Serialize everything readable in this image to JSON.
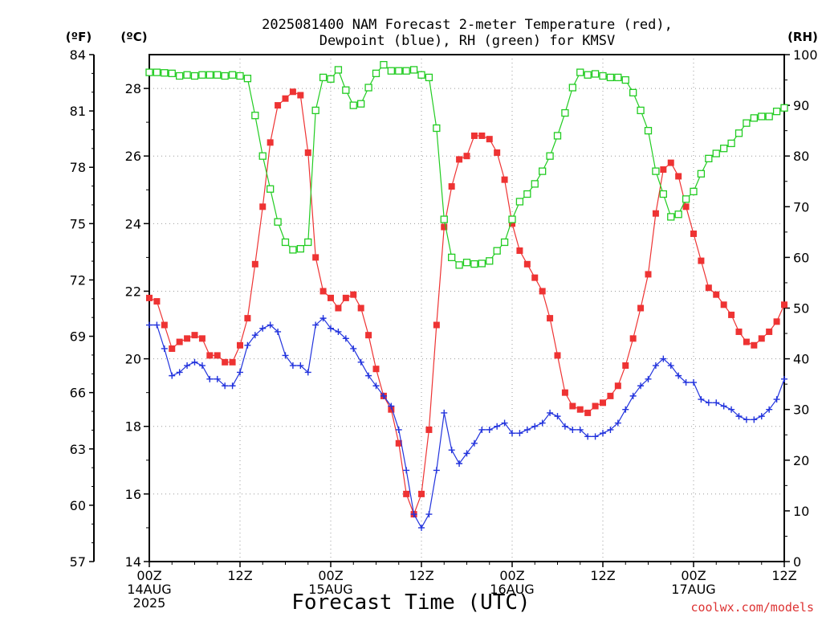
{
  "title_lines": [
    "2025081400 NAM Forecast 2-meter Temperature (red),",
    "Dewpoint (blue), RH (green) for KMSV"
  ],
  "units": {
    "left_f": "(ºF)",
    "left_c": "(ºC)",
    "right": "(RH)"
  },
  "xlabel": "Forecast Time (UTC)",
  "credit": "coolwx.com/models",
  "colors": {
    "temperature": "#ee3333",
    "dewpoint": "#2233dd",
    "rh": "#22cc22",
    "grid": "#999999",
    "credit": "#dd3333"
  },
  "chart_data": {
    "type": "line",
    "title": "2025081400 NAM Forecast 2-meter Temperature (red), Dewpoint (blue), RH (green) for KMSV",
    "xlabel": "Forecast Time (UTC)",
    "x_unit": "forecast hour from 2025-08-14 00Z",
    "xlim": [
      0,
      84
    ],
    "x_ticks": [
      {
        "x": 0,
        "lines": [
          "00Z",
          "14AUG",
          "2025"
        ]
      },
      {
        "x": 12,
        "lines": [
          "12Z"
        ]
      },
      {
        "x": 24,
        "lines": [
          "00Z",
          "15AUG"
        ]
      },
      {
        "x": 36,
        "lines": [
          "12Z"
        ]
      },
      {
        "x": 48,
        "lines": [
          "00Z",
          "16AUG"
        ]
      },
      {
        "x": 60,
        "lines": [
          "12Z"
        ]
      },
      {
        "x": 72,
        "lines": [
          "00Z",
          "17AUG"
        ]
      },
      {
        "x": 84,
        "lines": [
          "12Z"
        ]
      }
    ],
    "y_left_c": {
      "label": "(ºC)",
      "ylim": [
        14,
        29
      ],
      "ticks": [
        14,
        16,
        18,
        20,
        22,
        24,
        26,
        28
      ]
    },
    "y_left_f": {
      "label": "(ºF)",
      "ylim": [
        57,
        84
      ],
      "ticks": [
        57,
        60,
        63,
        66,
        69,
        72,
        75,
        78,
        81,
        84
      ]
    },
    "y_right": {
      "label": "(RH)",
      "ylim": [
        0,
        100
      ],
      "ticks": [
        0,
        10,
        20,
        30,
        40,
        50,
        60,
        70,
        80,
        90,
        100
      ]
    },
    "grid": true,
    "series": [
      {
        "id": "temperature",
        "axis": "c",
        "marker": "filled-square",
        "color": "#ee3333",
        "x": [
          0,
          1,
          2,
          3,
          4,
          5,
          6,
          7,
          8,
          9,
          10,
          11,
          12,
          13,
          14,
          15,
          16,
          17,
          18,
          19,
          20,
          21,
          22,
          23,
          24,
          25,
          26,
          27,
          28,
          29,
          30,
          31,
          32,
          33,
          34,
          35,
          36,
          37,
          38,
          39,
          40,
          41,
          42,
          43,
          44,
          45,
          46,
          47,
          48,
          49,
          50,
          51,
          52,
          53,
          54,
          55,
          56,
          57,
          58,
          59,
          60,
          61,
          62,
          63,
          64,
          65,
          66,
          67,
          68,
          69,
          70,
          71,
          72,
          73,
          74,
          75,
          76,
          77,
          78,
          79,
          80,
          81,
          82,
          83,
          84
        ],
        "values": [
          21.8,
          21.7,
          21.0,
          20.3,
          20.5,
          20.6,
          20.7,
          20.6,
          20.1,
          20.1,
          19.9,
          19.9,
          20.4,
          21.2,
          22.8,
          24.5,
          26.4,
          27.5,
          27.7,
          27.9,
          27.8,
          26.1,
          23.0,
          22.0,
          21.8,
          21.5,
          21.8,
          21.9,
          21.5,
          20.7,
          19.7,
          18.9,
          18.5,
          17.5,
          16.0,
          15.4,
          16.0,
          17.9,
          21.0,
          23.9,
          25.1,
          25.9,
          26.0,
          26.6,
          26.6,
          26.5,
          26.1,
          25.3,
          24.0,
          23.2,
          22.8,
          22.4,
          22.0,
          21.2,
          20.1,
          19.0,
          18.6,
          18.5,
          18.4,
          18.6,
          18.7,
          18.9,
          19.2,
          19.8,
          20.6,
          21.5,
          22.5,
          24.3,
          25.6,
          25.8,
          25.4,
          24.5,
          23.7,
          22.9,
          22.1,
          21.9,
          21.6,
          21.3,
          20.8,
          20.5,
          20.4,
          20.6,
          20.8,
          21.1,
          21.6
        ]
      },
      {
        "id": "dewpoint",
        "axis": "c",
        "marker": "plus",
        "color": "#2233dd",
        "x": [
          0,
          1,
          2,
          3,
          4,
          5,
          6,
          7,
          8,
          9,
          10,
          11,
          12,
          13,
          14,
          15,
          16,
          17,
          18,
          19,
          20,
          21,
          22,
          23,
          24,
          25,
          26,
          27,
          28,
          29,
          30,
          31,
          32,
          33,
          34,
          35,
          36,
          37,
          38,
          39,
          40,
          41,
          42,
          43,
          44,
          45,
          46,
          47,
          48,
          49,
          50,
          51,
          52,
          53,
          54,
          55,
          56,
          57,
          58,
          59,
          60,
          61,
          62,
          63,
          64,
          65,
          66,
          67,
          68,
          69,
          70,
          71,
          72,
          73,
          74,
          75,
          76,
          77,
          78,
          79,
          80,
          81,
          82,
          83,
          84
        ],
        "values": [
          21.0,
          21.0,
          20.3,
          19.5,
          19.6,
          19.8,
          19.9,
          19.8,
          19.4,
          19.4,
          19.2,
          19.2,
          19.6,
          20.4,
          20.7,
          20.9,
          21.0,
          20.8,
          20.1,
          19.8,
          19.8,
          19.6,
          21.0,
          21.2,
          20.9,
          20.8,
          20.6,
          20.3,
          19.9,
          19.5,
          19.2,
          18.9,
          18.6,
          17.9,
          16.7,
          15.4,
          15.0,
          15.4,
          16.7,
          18.4,
          17.3,
          16.9,
          17.2,
          17.5,
          17.9,
          17.9,
          18.0,
          18.1,
          17.8,
          17.8,
          17.9,
          18.0,
          18.1,
          18.4,
          18.3,
          18.0,
          17.9,
          17.9,
          17.7,
          17.7,
          17.8,
          17.9,
          18.1,
          18.5,
          18.9,
          19.2,
          19.4,
          19.8,
          20.0,
          19.8,
          19.5,
          19.3,
          19.3,
          18.8,
          18.7,
          18.7,
          18.6,
          18.5,
          18.3,
          18.2,
          18.2,
          18.3,
          18.5,
          18.8,
          19.4
        ]
      },
      {
        "id": "rh",
        "axis": "rh",
        "marker": "open-square",
        "color": "#22cc22",
        "x": [
          0,
          1,
          2,
          3,
          4,
          5,
          6,
          7,
          8,
          9,
          10,
          11,
          12,
          13,
          14,
          15,
          16,
          17,
          18,
          19,
          20,
          21,
          22,
          23,
          24,
          25,
          26,
          27,
          28,
          29,
          30,
          31,
          32,
          33,
          34,
          35,
          36,
          37,
          38,
          39,
          40,
          41,
          42,
          43,
          44,
          45,
          46,
          47,
          48,
          49,
          50,
          51,
          52,
          53,
          54,
          55,
          56,
          57,
          58,
          59,
          60,
          61,
          62,
          63,
          64,
          65,
          66,
          67,
          68,
          69,
          70,
          71,
          72,
          73,
          74,
          75,
          76,
          77,
          78,
          79,
          80,
          81,
          82,
          83,
          84
        ],
        "values": [
          96.5,
          96.5,
          96.4,
          96.3,
          95.8,
          96.0,
          95.8,
          96.0,
          96.0,
          96.0,
          95.8,
          96.0,
          95.8,
          95.3,
          88.0,
          80.0,
          73.5,
          67.0,
          63.0,
          61.5,
          61.7,
          63.0,
          89.0,
          95.5,
          95.2,
          97.0,
          93.0,
          90.0,
          90.3,
          93.5,
          96.3,
          98.0,
          96.8,
          96.8,
          96.8,
          97.0,
          96.0,
          95.5,
          85.5,
          67.5,
          60.0,
          58.5,
          59.0,
          58.7,
          58.8,
          59.3,
          61.3,
          63.0,
          67.5,
          71.0,
          72.5,
          74.5,
          77.0,
          80.0,
          84.0,
          88.5,
          93.5,
          96.5,
          96.0,
          96.2,
          95.8,
          95.5,
          95.5,
          95.0,
          92.5,
          89.0,
          85.0,
          77.0,
          72.5,
          68.0,
          68.5,
          71.5,
          73.0,
          76.5,
          79.5,
          80.5,
          81.5,
          82.5,
          84.5,
          86.5,
          87.5,
          87.8,
          87.8,
          88.8,
          89.5
        ]
      }
    ]
  }
}
